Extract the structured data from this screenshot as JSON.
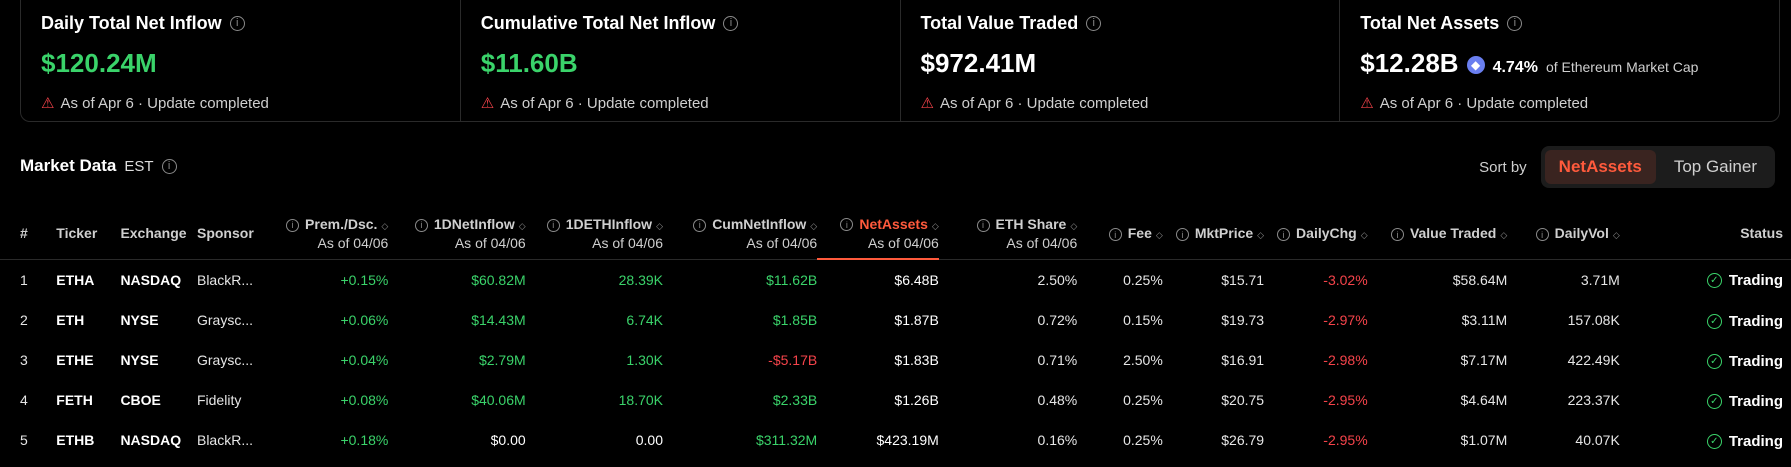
{
  "cards": [
    {
      "title": "Daily Total Net Inflow",
      "value": "$120.24M",
      "color": "green",
      "foot": "As of Apr 6 · Update completed"
    },
    {
      "title": "Cumulative Total Net Inflow",
      "value": "$11.60B",
      "color": "green",
      "foot": "As of Apr 6 · Update completed"
    },
    {
      "title": "Total Value Traded",
      "value": "$972.41M",
      "color": "white",
      "foot": "As of Apr 6 · Update completed"
    },
    {
      "title": "Total Net Assets",
      "value": "$12.28B",
      "color": "white",
      "pct": "4.74%",
      "pct_sub": "of Ethereum Market Cap",
      "foot": "As of Apr 6 · Update completed"
    }
  ],
  "market": {
    "title": "Market Data",
    "tz": "EST",
    "sort_label": "Sort by",
    "sort_options": [
      "NetAssets",
      "Top Gainer"
    ]
  },
  "columns": {
    "idx": "#",
    "ticker": "Ticker",
    "exchange": "Exchange",
    "sponsor": "Sponsor",
    "prem": "Prem./Dsc.",
    "inflow": "1DNetInflow",
    "ethinflow": "1DETHInflow",
    "cum": "CumNetInflow",
    "assets": "NetAssets",
    "share": "ETH Share",
    "asof": "As of 04/06",
    "fee": "Fee",
    "price": "MktPrice",
    "chg": "DailyChg",
    "traded": "Value Traded",
    "vol": "DailyVol",
    "status": "Status"
  },
  "rows": [
    {
      "idx": "1",
      "ticker": "ETHA",
      "exchange": "NASDAQ",
      "sponsor": "BlackR...",
      "prem": "+0.15%",
      "inflow": "$60.82M",
      "ethinflow": "28.39K",
      "cum": "$11.62B",
      "assets": "$6.48B",
      "share": "2.50%",
      "fee": "0.25%",
      "price": "$15.71",
      "chg": "-3.02%",
      "traded": "$58.64M",
      "vol": "3.71M",
      "status": "Trading"
    },
    {
      "idx": "2",
      "ticker": "ETH",
      "exchange": "NYSE",
      "sponsor": "Graysc...",
      "prem": "+0.06%",
      "inflow": "$14.43M",
      "ethinflow": "6.74K",
      "cum": "$1.85B",
      "assets": "$1.87B",
      "share": "0.72%",
      "fee": "0.15%",
      "price": "$19.73",
      "chg": "-2.97%",
      "traded": "$3.11M",
      "vol": "157.08K",
      "status": "Trading"
    },
    {
      "idx": "3",
      "ticker": "ETHE",
      "exchange": "NYSE",
      "sponsor": "Graysc...",
      "prem": "+0.04%",
      "inflow": "$2.79M",
      "ethinflow": "1.30K",
      "cum": "-$5.17B",
      "assets": "$1.83B",
      "share": "0.71%",
      "fee": "2.50%",
      "price": "$16.91",
      "chg": "-2.98%",
      "traded": "$7.17M",
      "vol": "422.49K",
      "status": "Trading"
    },
    {
      "idx": "4",
      "ticker": "FETH",
      "exchange": "CBOE",
      "sponsor": "Fidelity",
      "prem": "+0.08%",
      "inflow": "$40.06M",
      "ethinflow": "18.70K",
      "cum": "$2.33B",
      "assets": "$1.26B",
      "share": "0.48%",
      "fee": "0.25%",
      "price": "$20.75",
      "chg": "-2.95%",
      "traded": "$4.64M",
      "vol": "223.37K",
      "status": "Trading"
    },
    {
      "idx": "5",
      "ticker": "ETHB",
      "exchange": "NASDAQ",
      "sponsor": "BlackR...",
      "prem": "+0.18%",
      "inflow": "$0.00",
      "ethinflow": "0.00",
      "cum": "$311.32M",
      "assets": "$423.19M",
      "share": "0.16%",
      "fee": "0.25%",
      "price": "$26.79",
      "chg": "-2.95%",
      "traded": "$1.07M",
      "vol": "40.07K",
      "status": "Trading"
    }
  ]
}
